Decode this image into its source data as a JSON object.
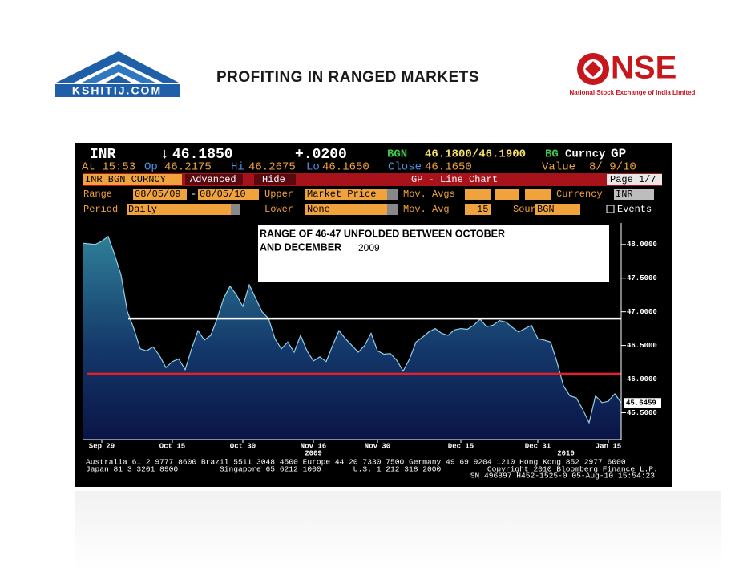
{
  "header": {
    "title": "PROFITING IN RANGED MARKETS",
    "left_logo": "KSHITIJ.COM",
    "right_logo": "NSE",
    "right_logo_caption": "National Stock Exchange of India Limited"
  },
  "terminal": {
    "quote": [
      "INR",
      "↓",
      "46.1850",
      "+.0200",
      "BGN",
      "46.1800/46.1900",
      "BG",
      "Curncy",
      "GP"
    ],
    "stats": [
      "At 15:53",
      "Op",
      "46.2175",
      "Hi",
      "46.2675",
      "Lo",
      "46.1650",
      "Close",
      "46.1650",
      "Value",
      "8/ 9/10"
    ],
    "toolbar": [
      "INR BGN CURNCY",
      "Advanced",
      "Hide",
      "GP - Line Chart",
      "Page 1/7"
    ],
    "range_row": [
      "Range",
      "08/05/09",
      "-",
      "08/05/10",
      "Upper",
      "Market Price",
      "Mov. Avgs",
      "Currency",
      "INR"
    ],
    "period_row": [
      "Period",
      "Daily",
      "Lower",
      "None",
      "Mov. Avg",
      "15",
      "Source",
      "BGN",
      "Events"
    ],
    "footer": [
      "Australia 61 2 9777 8600 Brazil 5511 3048 4500 Europe 44 20 7330 7500 Germany 49 69 9204 1210 Hong Kong 852 2977 6000",
      "Japan 81 3 3201 8900         Singapore 65 6212 1000       U.S. 1 212 318 2000          Copyright 2010 Bloomberg Finance L.P.",
      "SN 496897 H452-1525-0 05-Aug-10 15:54:23"
    ]
  },
  "chart_data": {
    "type": "area",
    "annotation": [
      "RANGE OF 46-47 UNFOLDED BETWEEN OCTOBER",
      "AND DECEMBER",
      "2009"
    ],
    "categories": [
      null,
      null,
      null,
      "Sep 29",
      null,
      null,
      null,
      null,
      null,
      null,
      null,
      null,
      null,
      null,
      "Oct 15",
      null,
      null,
      null,
      null,
      null,
      null,
      null,
      null,
      null,
      null,
      "Oct 30",
      null,
      null,
      null,
      null,
      null,
      null,
      null,
      null,
      null,
      null,
      "Nov 16",
      null,
      null,
      null,
      null,
      null,
      null,
      null,
      null,
      null,
      "Nov 30",
      null,
      null,
      null,
      null,
      null,
      null,
      null,
      null,
      null,
      null,
      null,
      null,
      "Dec 15",
      null,
      null,
      null,
      null,
      null,
      null,
      null,
      null,
      null,
      null,
      null,
      "Dec 31",
      null,
      null,
      null,
      null,
      null,
      null,
      null,
      null,
      null,
      null,
      "Jan 15",
      null,
      null
    ],
    "year_labels": [
      "2009",
      "2010"
    ],
    "values": [
      48.02,
      48.01,
      48.0,
      48.05,
      48.12,
      47.85,
      47.55,
      47.0,
      46.75,
      46.45,
      46.42,
      46.48,
      46.35,
      46.17,
      46.26,
      46.3,
      46.14,
      46.45,
      46.72,
      46.58,
      46.65,
      46.9,
      47.2,
      47.38,
      47.25,
      47.08,
      47.4,
      47.2,
      47.0,
      46.9,
      46.6,
      46.45,
      46.55,
      46.4,
      46.65,
      46.42,
      46.27,
      46.33,
      46.26,
      46.5,
      46.72,
      46.6,
      46.5,
      46.4,
      46.5,
      46.68,
      46.42,
      46.37,
      46.38,
      46.28,
      46.12,
      46.3,
      46.55,
      46.62,
      46.7,
      46.75,
      46.68,
      46.65,
      46.73,
      46.75,
      46.74,
      46.8,
      46.89,
      46.78,
      46.8,
      46.87,
      46.85,
      46.77,
      46.7,
      46.75,
      46.8,
      46.6,
      46.58,
      46.55,
      46.25,
      45.9,
      45.75,
      45.72,
      45.55,
      45.35,
      45.75,
      45.65,
      45.67,
      45.78,
      45.65
    ],
    "color": "#8fd0e8",
    "ylim": [
      45.1,
      48.32
    ],
    "yticks": [
      {
        "value": 45.5,
        "label": "45.5000"
      },
      {
        "value": 46,
        "label": "46.0000"
      },
      {
        "value": 46.5,
        "label": "46.5000"
      },
      {
        "value": 47,
        "label": "47.0000"
      },
      {
        "value": 47.5,
        "label": "47.5000"
      },
      {
        "value": 48,
        "label": "48.0000"
      }
    ],
    "last_value": 45.6459,
    "reference_lines": [
      {
        "value": 46.9,
        "color": "#ffffff"
      },
      {
        "value": 46.08,
        "color": "#e3202a"
      }
    ]
  }
}
